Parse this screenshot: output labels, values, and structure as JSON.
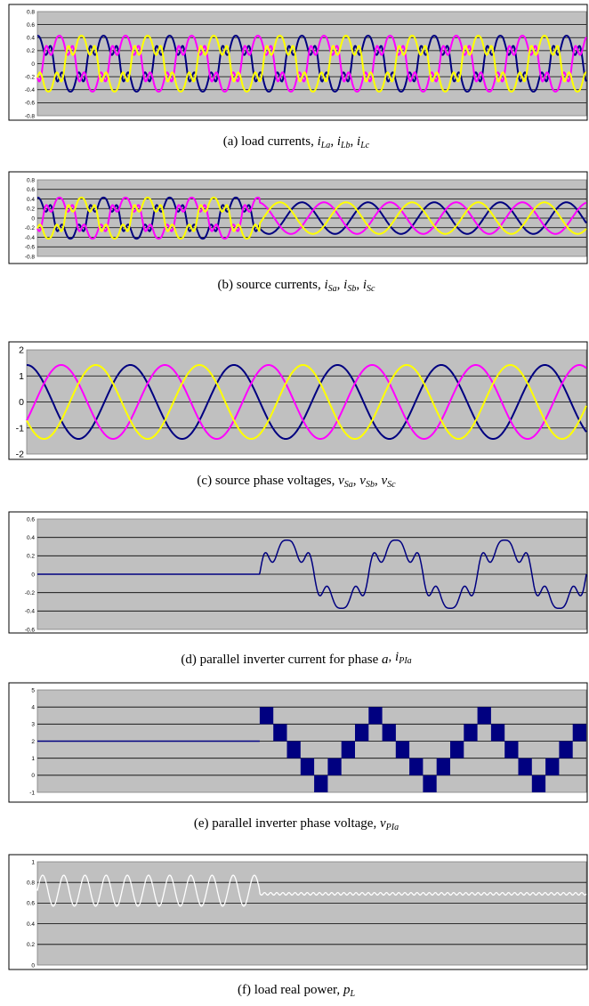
{
  "figure": {
    "panels": [
      {
        "id": "a",
        "chart_data": {
          "type": "line",
          "title": "",
          "xlabel": "",
          "ylabel": "",
          "ylim": [
            -0.8,
            0.8
          ],
          "yticks": [
            "0.8",
            "0.6",
            "0.4",
            "0.2",
            "0",
            "-0.2",
            "-0.4",
            "-0.6",
            "-0.8"
          ],
          "grid": true,
          "cycles": 8.3,
          "series": [
            {
              "color": "#000080",
              "amplitude": 0.36,
              "phase_deg": 90,
              "harmonics": [
                [
                  5,
                  0.12
                ],
                [
                  7,
                  0.05
                ]
              ]
            },
            {
              "color": "#ff00ff",
              "amplitude": 0.36,
              "phase_deg": -30,
              "harmonics": [
                [
                  5,
                  0.12
                ],
                [
                  7,
                  0.05
                ]
              ]
            },
            {
              "color": "#ffff00",
              "amplitude": 0.36,
              "phase_deg": 210,
              "harmonics": [
                [
                  5,
                  0.12
                ],
                [
                  7,
                  0.05
                ]
              ]
            }
          ]
        },
        "caption": {
          "prefix": "(a) load currents, ",
          "v1": "i",
          "s1": "La",
          "sep1": ", ",
          "v2": "i",
          "s2": "Lb",
          "sep2": ", ",
          "v3": "i",
          "s3": "Lc",
          "suffix": ""
        }
      },
      {
        "id": "b",
        "chart_data": {
          "type": "line",
          "title": "",
          "xlabel": "",
          "ylabel": "",
          "ylim": [
            -0.8,
            0.8
          ],
          "yticks": [
            "0.8",
            "0.6",
            "0.4",
            "0.2",
            "0",
            "-0.2",
            "-0.4",
            "-0.6",
            "-0.8"
          ],
          "grid": true,
          "cycles": 8.3,
          "switch_fraction": 0.405,
          "series": [
            {
              "color": "#000080",
              "amplitude": 0.36,
              "phase_deg": 90,
              "harmonics_before": [
                [
                  5,
                  0.12
                ],
                [
                  7,
                  0.05
                ]
              ],
              "amplitude_after": 0.33
            },
            {
              "color": "#ff00ff",
              "amplitude": 0.36,
              "phase_deg": -30,
              "harmonics_before": [
                [
                  5,
                  0.12
                ],
                [
                  7,
                  0.05
                ]
              ],
              "amplitude_after": 0.33
            },
            {
              "color": "#ffff00",
              "amplitude": 0.36,
              "phase_deg": 210,
              "harmonics_before": [
                [
                  5,
                  0.12
                ],
                [
                  7,
                  0.05
                ]
              ],
              "amplitude_after": 0.33
            }
          ]
        },
        "caption": {
          "prefix": "(b) source currents, ",
          "v1": "i",
          "s1": "Sa",
          "sep1": ", ",
          "v2": "i",
          "s2": "Sb",
          "sep2": ", ",
          "v3": "i",
          "s3": "Sc",
          "suffix": ""
        }
      },
      {
        "id": "c",
        "chart_data": {
          "type": "line",
          "title": "",
          "xlabel": "",
          "ylabel": "",
          "ylim": [
            -2,
            2
          ],
          "yticks": [
            "2",
            "1",
            "0",
            "-1",
            "-2"
          ],
          "grid": true,
          "cycles": 5.4,
          "series": [
            {
              "color": "#000080",
              "amplitude": 1.42,
              "phase_deg": 90
            },
            {
              "color": "#ff00ff",
              "amplitude": 1.42,
              "phase_deg": -30
            },
            {
              "color": "#ffff00",
              "amplitude": 1.42,
              "phase_deg": 210
            }
          ]
        },
        "caption": {
          "prefix": "(c) source phase voltages, ",
          "v1": "v",
          "s1": "Sa",
          "sep1": ", ",
          "v2": "v",
          "s2": "Sb",
          "sep2": ", ",
          "v3": "v",
          "s3": "Sc",
          "suffix": ""
        }
      },
      {
        "id": "d",
        "chart_data": {
          "type": "line",
          "title": "",
          "xlabel": "",
          "ylabel": "",
          "ylim": [
            -0.6,
            0.6
          ],
          "yticks": [
            "0.6",
            "0.4",
            "0.2",
            "0",
            "-0.2",
            "-0.4",
            "-0.6"
          ],
          "grid": true,
          "switch_fraction": 0.405,
          "cycles_after": 3.0,
          "series": [
            {
              "color": "#000080",
              "before_value": 0,
              "amplitude_after": 0.33,
              "harmonics_after": [
                [
                  5,
                  0.09
                ],
                [
                  7,
                  0.05
                ]
              ]
            }
          ]
        },
        "caption": {
          "prefix": "(d) parallel inverter current for phase ",
          "v1": "a",
          "s1": "",
          "sep1": ", ",
          "v2": "i",
          "s2": "PIa",
          "sep2": "",
          "v3": "",
          "s3": "",
          "suffix": ""
        }
      },
      {
        "id": "e",
        "chart_data": {
          "type": "line",
          "title": "",
          "xlabel": "",
          "ylabel": "",
          "ylim": [
            -1,
            5
          ],
          "yticks": [
            "5",
            "4",
            "3",
            "2",
            "1",
            "0",
            "-1"
          ],
          "grid": true,
          "switch_fraction": 0.405,
          "cycles_after": 3.0,
          "series": [
            {
              "color": "#000080",
              "before_value": 2,
              "levels_after": [
                4,
                3,
                2,
                1,
                0,
                1,
                2,
                3
              ]
            }
          ]
        },
        "caption": {
          "prefix": "(e) parallel inverter phase voltage, ",
          "v1": "v",
          "s1": "PIa",
          "sep1": "",
          "v2": "",
          "s2": "",
          "sep2": "",
          "v3": "",
          "s3": "",
          "suffix": ""
        }
      },
      {
        "id": "f",
        "chart_data": {
          "type": "line",
          "title": "",
          "xlabel": "",
          "ylabel": "",
          "ylim": [
            0,
            1
          ],
          "yticks": [
            "1",
            "0.8",
            "0.6",
            "0.4",
            "0.2",
            "0"
          ],
          "grid": true,
          "switch_fraction": 0.405,
          "series": [
            {
              "color": "#ffffff",
              "before_mean": 0.72,
              "before_amplitude": 0.15,
              "before_cycles": 10.5,
              "after_mean": 0.69,
              "after_ripple": 0.012
            }
          ]
        },
        "caption": {
          "prefix": "(f) load real power, ",
          "v1": "p",
          "s1": "L",
          "sep1": "",
          "v2": "",
          "s2": "",
          "sep2": "",
          "v3": "",
          "s3": "",
          "suffix": ""
        }
      }
    ]
  }
}
